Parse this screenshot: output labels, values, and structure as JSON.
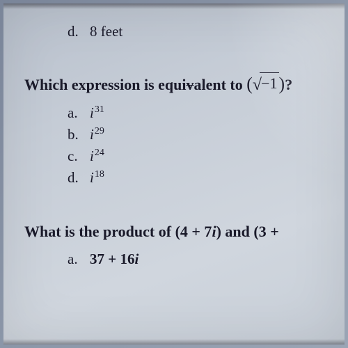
{
  "page": {
    "background_gradient": [
      "#7a8599",
      "#8b96a8",
      "#9ba5b5"
    ],
    "paper_gradient": [
      "#b8c0cc",
      "#c5ccd6",
      "#d0d6de"
    ],
    "text_color": "#1a1a2a",
    "font_family": "Times New Roman",
    "body_fontsize": 21,
    "question_fontsize": 22,
    "superscript_fontsize": 14
  },
  "prev_question": {
    "option_d": {
      "letter": "d.",
      "text": "8 feet"
    }
  },
  "question1": {
    "prompt_prefix": "Which expression is ",
    "prompt_equiv_prefix": "equi",
    "prompt_equiv_struck": "v",
    "prompt_equiv_suffix": "alent to ",
    "expr_open": "(",
    "expr_radical": "√",
    "expr_radicand": "−1",
    "expr_close": ")",
    "prompt_end": "?",
    "options": [
      {
        "letter": "a.",
        "base": "i",
        "exponent": "31"
      },
      {
        "letter": "b.",
        "base": "i",
        "exponent": "29"
      },
      {
        "letter": "c.",
        "base": "i",
        "exponent": "24"
      },
      {
        "letter": "d.",
        "base": "i",
        "exponent": "18"
      }
    ]
  },
  "question2": {
    "prompt_p1": "What is the product of ",
    "expr1_open": "(",
    "expr1_a": "4 + 7",
    "expr1_i": "i",
    "expr1_close": ")",
    "prompt_and": " and ",
    "expr2_open": "(",
    "expr2_a": "3 +",
    "options": [
      {
        "letter": "a.",
        "value_a": "37 + 16",
        "value_i": "i"
      }
    ]
  }
}
